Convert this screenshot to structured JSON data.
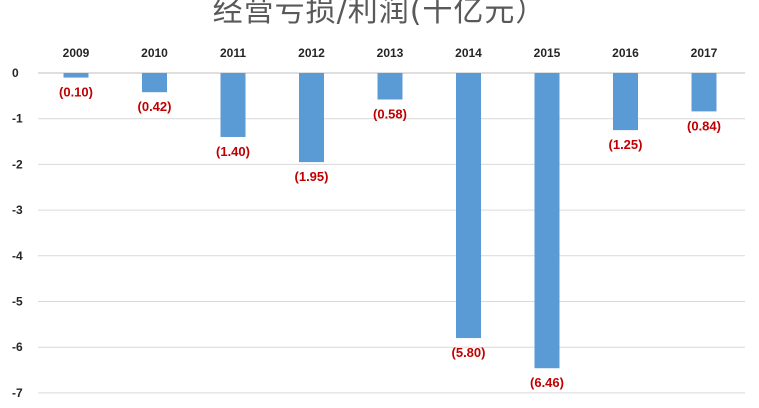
{
  "chart_data": {
    "type": "bar",
    "title": "经营亏损/利润(十亿元）",
    "categories": [
      "2009",
      "2010",
      "2011",
      "2012",
      "2013",
      "2014",
      "2015",
      "2016",
      "2017"
    ],
    "values": [
      -0.1,
      -0.42,
      -1.4,
      -1.95,
      -0.58,
      -5.8,
      -6.46,
      -1.25,
      -0.84
    ],
    "data_labels": [
      "(0.10)",
      "(0.42)",
      "(1.40)",
      "(1.95)",
      "(0.58)",
      "(5.80)",
      "(6.46)",
      "(1.25)",
      "(0.84)"
    ],
    "xlabel": "",
    "ylabel": "",
    "ylim": [
      -7,
      0
    ],
    "yticks": [
      0,
      -1,
      -2,
      -3,
      -4,
      -5,
      -6,
      -7
    ],
    "x_axis_position": "top",
    "grid": true,
    "legend": "none",
    "colors": {
      "bar": "#5b9bd5",
      "data_label": "#c00000",
      "grid": "#d9d9d9",
      "axis_text": "#262626",
      "title": "#595959"
    }
  }
}
